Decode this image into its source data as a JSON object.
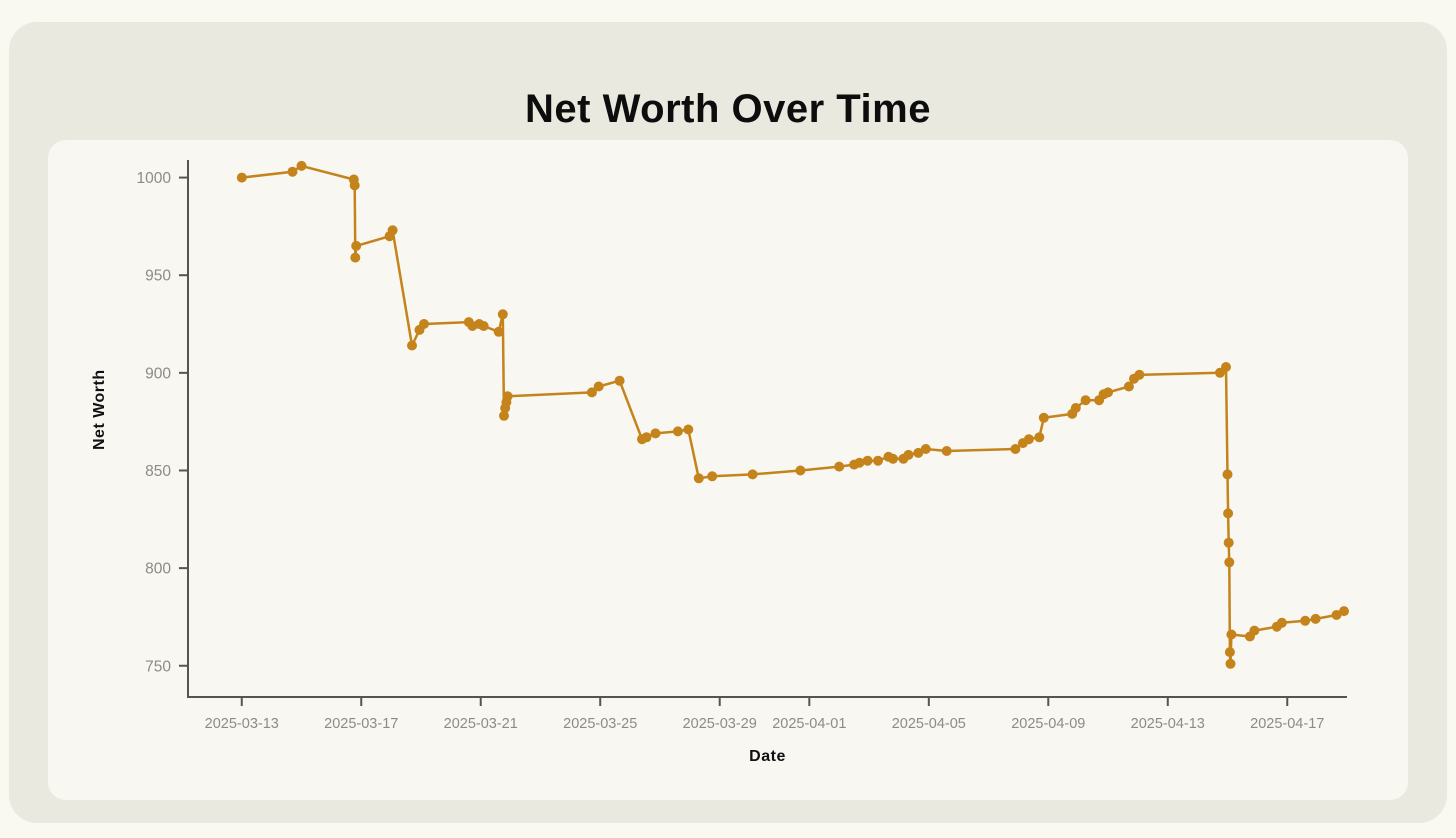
{
  "header": {
    "title": "Net Worth Over Time"
  },
  "colors": {
    "page_bg": "#FAF9F1",
    "panel_bg": "#E9E9DF",
    "card_bg": "#F8F7F1",
    "line": "#C5831C",
    "spine": "#55544E",
    "tick_text": "#8C8B85",
    "title_text": "#0D0D0D"
  },
  "chart_data": {
    "type": "line",
    "title": "Net Worth Over Time",
    "xlabel": "Date",
    "ylabel": "Net Worth",
    "grid": false,
    "legend": null,
    "marker": "circle",
    "x_unit": "t = days since 2025-03-13 (positions estimated from plot)",
    "x_range_t": [
      -1.8,
      37.0
    ],
    "ylim": [
      734,
      1009
    ],
    "x_ticks": [
      {
        "t": 0,
        "label": "2025-03-13"
      },
      {
        "t": 4,
        "label": "2025-03-17"
      },
      {
        "t": 8,
        "label": "2025-03-21"
      },
      {
        "t": 12,
        "label": "2025-03-25"
      },
      {
        "t": 16,
        "label": "2025-03-29"
      },
      {
        "t": 19,
        "label": "2025-04-01"
      },
      {
        "t": 23,
        "label": "2025-04-05"
      },
      {
        "t": 27,
        "label": "2025-04-09"
      },
      {
        "t": 31,
        "label": "2025-04-13"
      },
      {
        "t": 35,
        "label": "2025-04-17"
      }
    ],
    "y_ticks": [
      750,
      800,
      850,
      900,
      950,
      1000
    ],
    "points": [
      [
        0,
        1000
      ],
      [
        1.7,
        1003
      ],
      [
        2.0,
        1006
      ],
      [
        3.75,
        999
      ],
      [
        3.78,
        996
      ],
      [
        3.8,
        959
      ],
      [
        3.83,
        965
      ],
      [
        4.95,
        970
      ],
      [
        5.05,
        973
      ],
      [
        5.7,
        914
      ],
      [
        5.95,
        922
      ],
      [
        6.1,
        925
      ],
      [
        7.6,
        926
      ],
      [
        7.72,
        924
      ],
      [
        7.95,
        925
      ],
      [
        8.1,
        924
      ],
      [
        8.6,
        921
      ],
      [
        8.74,
        930
      ],
      [
        8.78,
        878
      ],
      [
        8.82,
        882
      ],
      [
        8.86,
        885
      ],
      [
        8.9,
        888
      ],
      [
        11.72,
        890
      ],
      [
        11.95,
        893
      ],
      [
        12.65,
        896
      ],
      [
        13.4,
        866
      ],
      [
        13.55,
        867
      ],
      [
        13.85,
        869
      ],
      [
        14.6,
        870
      ],
      [
        14.95,
        871
      ],
      [
        15.3,
        846
      ],
      [
        15.75,
        847
      ],
      [
        17.1,
        848
      ],
      [
        18.7,
        850
      ],
      [
        20.0,
        852
      ],
      [
        20.5,
        853
      ],
      [
        20.68,
        854
      ],
      [
        20.95,
        855
      ],
      [
        21.3,
        855
      ],
      [
        21.65,
        857
      ],
      [
        21.8,
        856
      ],
      [
        22.15,
        856
      ],
      [
        22.32,
        858
      ],
      [
        22.65,
        859
      ],
      [
        22.9,
        861
      ],
      [
        23.6,
        860
      ],
      [
        25.9,
        861
      ],
      [
        26.15,
        864
      ],
      [
        26.35,
        866
      ],
      [
        26.7,
        867
      ],
      [
        26.85,
        877
      ],
      [
        27.8,
        879
      ],
      [
        27.92,
        882
      ],
      [
        28.25,
        886
      ],
      [
        28.7,
        886
      ],
      [
        28.85,
        889
      ],
      [
        29.0,
        890
      ],
      [
        29.7,
        893
      ],
      [
        29.87,
        897
      ],
      [
        30.05,
        899
      ],
      [
        32.75,
        900
      ],
      [
        32.95,
        903
      ],
      [
        33.0,
        848
      ],
      [
        33.02,
        828
      ],
      [
        33.04,
        813
      ],
      [
        33.06,
        803
      ],
      [
        33.08,
        757
      ],
      [
        33.1,
        751
      ],
      [
        33.13,
        766
      ],
      [
        33.75,
        765
      ],
      [
        33.9,
        768
      ],
      [
        34.65,
        770
      ],
      [
        34.82,
        772
      ],
      [
        35.6,
        773
      ],
      [
        35.95,
        774
      ],
      [
        36.65,
        776
      ],
      [
        36.9,
        778
      ]
    ]
  }
}
